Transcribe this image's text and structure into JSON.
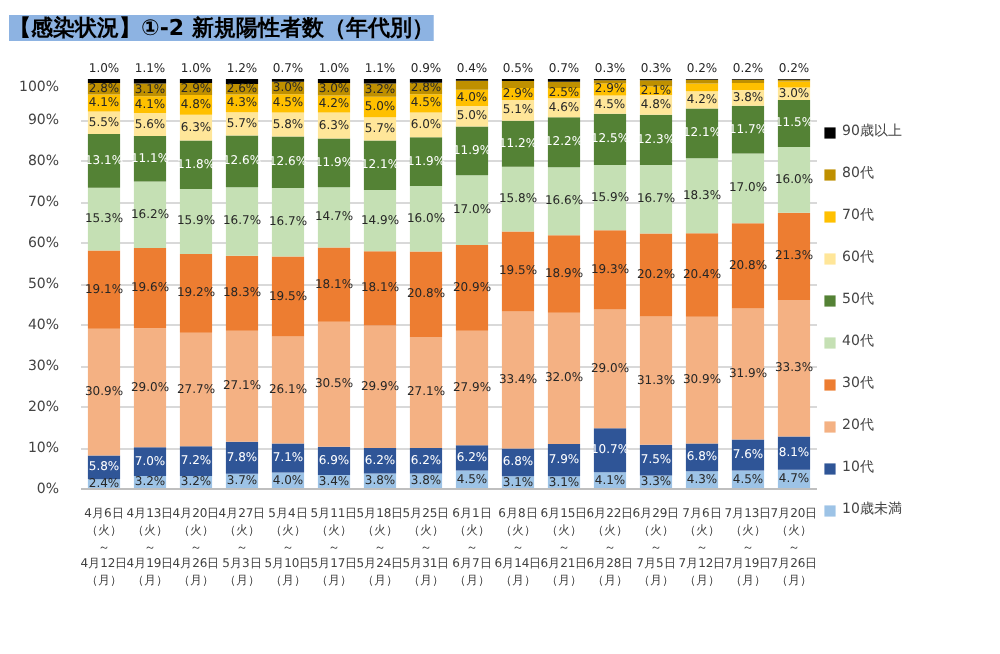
{
  "chart_data": {
    "type": "bar",
    "stacked": true,
    "title": "【感染状況】①-2 新規陽性者数（年代別）",
    "categories": [
      "4月6日（火）～4月12日（月）",
      "4月13日（火）～4月19日（月）",
      "4月20日（火）～4月26日（月）",
      "4月27日（火）～5月3日（月）",
      "5月4日（火）～5月10日（月）",
      "5月11日（火）～5月17日（月）",
      "5月18日（火）～5月24日（月）",
      "5月25日（火）～5月31日（月）",
      "6月1日（火）～6月7日（月）",
      "6月8日（火）～6月14日（月）",
      "6月15日（火）～6月21日（月）",
      "6月22日（火）～6月28日（月）",
      "6月29日（火）～7月5日（月）",
      "7月6日（火）～7月12日（月）",
      "7月13日（火）～7月19日（月）",
      "7月20日（火）～7月26日（月）"
    ],
    "series": [
      {
        "name": "10歳未満",
        "color": "#9dc3e6",
        "values": [
          2.4,
          3.2,
          3.2,
          3.7,
          4.0,
          3.4,
          3.8,
          3.8,
          4.5,
          3.1,
          3.1,
          4.1,
          3.3,
          4.3,
          4.5,
          4.7
        ],
        "value_labels": [
          "2.4%",
          "3.2%",
          "3.2%",
          "3.7%",
          "4.0%",
          "3.4%",
          "3.8%",
          "3.8%",
          "4.5%",
          "3.1%",
          "3.1%",
          "4.1%",
          "3.3%",
          "4.3%",
          "4.5%",
          "4.7%"
        ]
      },
      {
        "name": "10代",
        "color": "#2f5597",
        "values": [
          5.8,
          7.0,
          7.2,
          7.8,
          7.1,
          6.9,
          6.2,
          6.2,
          6.2,
          6.8,
          7.9,
          10.7,
          7.5,
          6.8,
          7.6,
          8.1
        ],
        "value_labels": [
          "5.8%",
          "7.0%",
          "7.2%",
          "7.8%",
          "7.1%",
          "6.9%",
          "6.2%",
          "6.2%",
          "6.2%",
          "6.8%",
          "7.9%",
          "10.7%",
          "7.5%",
          "6.8%",
          "7.6%",
          "8.1%"
        ]
      },
      {
        "name": "20代",
        "color": "#f4b183",
        "values": [
          30.9,
          29.0,
          27.7,
          27.1,
          26.1,
          30.5,
          29.9,
          27.1,
          27.9,
          33.4,
          32.0,
          29.0,
          31.3,
          30.9,
          31.9,
          33.3
        ],
        "value_labels": [
          "30.9%",
          "29.0%",
          "27.7%",
          "27.1%",
          "26.1%",
          "30.5%",
          "29.9%",
          "27.1%",
          "27.9%",
          "33.4%",
          "32.0%",
          "29.0%",
          "31.3%",
          "30.9%",
          "31.9%",
          "33.3%"
        ]
      },
      {
        "name": "30代",
        "color": "#ed7d31",
        "values": [
          19.1,
          19.6,
          19.2,
          18.3,
          19.5,
          18.1,
          18.1,
          20.8,
          20.9,
          19.5,
          18.9,
          19.3,
          20.2,
          20.4,
          20.8,
          21.3
        ],
        "value_labels": [
          "19.1%",
          "19.6%",
          "19.2%",
          "18.3%",
          "19.5%",
          "18.1%",
          "18.1%",
          "20.8%",
          "20.9%",
          "19.5%",
          "18.9%",
          "19.3%",
          "20.2%",
          "20.4%",
          "20.8%",
          "21.3%"
        ]
      },
      {
        "name": "40代",
        "color": "#c5e0b4",
        "values": [
          15.3,
          16.2,
          15.9,
          16.7,
          16.7,
          14.7,
          14.9,
          16.0,
          17.0,
          15.8,
          16.6,
          15.9,
          16.7,
          18.3,
          17.0,
          16.0
        ],
        "value_labels": [
          "15.3%",
          "16.2%",
          "15.9%",
          "16.7%",
          "16.7%",
          "14.7%",
          "14.9%",
          "16.0%",
          "17.0%",
          "15.8%",
          "16.6%",
          "15.9%",
          "16.7%",
          "18.3%",
          "17.0%",
          "16.0%"
        ]
      },
      {
        "name": "50代",
        "color": "#548235",
        "values": [
          13.1,
          11.1,
          11.8,
          12.6,
          12.6,
          11.9,
          12.1,
          11.9,
          11.9,
          11.2,
          12.2,
          12.5,
          12.3,
          12.1,
          11.7,
          11.5
        ],
        "value_labels": [
          "13.1%",
          "11.1%",
          "11.8%",
          "12.6%",
          "12.6%",
          "11.9%",
          "12.1%",
          "11.9%",
          "11.9%",
          "11.2%",
          "12.2%",
          "12.5%",
          "12.3%",
          "12.1%",
          "11.7%",
          "11.5%"
        ]
      },
      {
        "name": "60代",
        "color": "#ffe699",
        "values": [
          5.5,
          5.6,
          6.3,
          5.7,
          5.8,
          6.3,
          5.7,
          6.0,
          5.0,
          5.1,
          4.6,
          4.5,
          4.8,
          4.2,
          3.8,
          3.0
        ],
        "value_labels": [
          "5.5%",
          "5.6%",
          "6.3%",
          "5.7%",
          "5.8%",
          "6.3%",
          "5.7%",
          "6.0%",
          "5.0%",
          "5.1%",
          "4.6%",
          "4.5%",
          "4.8%",
          "4.2%",
          "3.8%",
          "3.0%"
        ]
      },
      {
        "name": "70代",
        "color": "#ffc000",
        "values": [
          4.1,
          4.1,
          4.8,
          4.3,
          4.5,
          4.2,
          5.0,
          4.5,
          4.0,
          2.9,
          2.5,
          2.9,
          2.1,
          1.9,
          1.7,
          1.5
        ],
        "value_labels": [
          "4.1%",
          "4.1%",
          "4.8%",
          "4.3%",
          "4.5%",
          "4.2%",
          "5.0%",
          "4.5%",
          "4.0%",
          "2.9%",
          "2.5%",
          "2.9%",
          "2.1%",
          null,
          null,
          null
        ]
      },
      {
        "name": "80代",
        "color": "#bf9000",
        "values": [
          2.8,
          3.1,
          2.9,
          2.6,
          3.0,
          3.0,
          3.2,
          2.8,
          2.2,
          1.7,
          1.5,
          0.8,
          1.5,
          0.9,
          0.8,
          0.4
        ],
        "value_labels": [
          "2.8%",
          "3.1%",
          "2.9%",
          "2.6%",
          "3.0%",
          "3.0%",
          "3.2%",
          "2.8%",
          null,
          null,
          null,
          null,
          null,
          null,
          null,
          null
        ]
      },
      {
        "name": "90歳以上",
        "color": "#000000",
        "values": [
          1.0,
          1.1,
          1.0,
          1.2,
          0.7,
          1.0,
          1.1,
          0.9,
          0.4,
          0.5,
          0.7,
          0.3,
          0.3,
          0.2,
          0.2,
          0.2
        ],
        "value_labels": [
          "1.0%",
          "1.1%",
          "1.0%",
          "1.2%",
          "0.7%",
          "1.0%",
          "1.1%",
          "0.9%",
          "0.4%",
          "0.5%",
          "0.7%",
          "0.3%",
          "0.3%",
          "0.2%",
          "0.2%",
          "0.2%"
        ]
      }
    ],
    "ylim": [
      0,
      100
    ],
    "yticks": [
      {
        "value": 0,
        "label": "0%"
      },
      {
        "value": 10,
        "label": "10%"
      },
      {
        "value": 20,
        "label": "20%"
      },
      {
        "value": 30,
        "label": "30%"
      },
      {
        "value": 40,
        "label": "40%"
      },
      {
        "value": 50,
        "label": "50%"
      },
      {
        "value": 60,
        "label": "60%"
      },
      {
        "value": 70,
        "label": "70%"
      },
      {
        "value": 80,
        "label": "80%"
      },
      {
        "value": 90,
        "label": "90%"
      },
      {
        "value": 100,
        "label": "100%"
      }
    ],
    "grid": "y",
    "legend": "right"
  }
}
